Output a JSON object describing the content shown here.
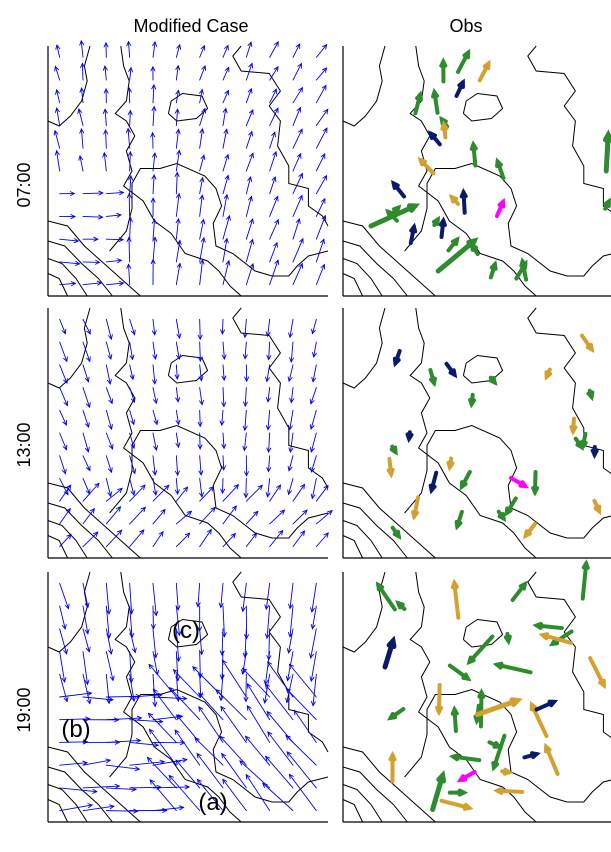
{
  "columns": [
    "Modified Case",
    "Obs"
  ],
  "rows": [
    "07:00",
    "13:00",
    "19:00"
  ],
  "annotations": [
    "(a)",
    "(b)",
    "(c)"
  ],
  "colors": {
    "model_arrow": "#0000ee",
    "contour": "#000000",
    "obs_green": "#2e8b2e",
    "obs_orange": "#d4a030",
    "obs_navy": "#0a1a6b",
    "obs_magenta": "#ff00ff",
    "obs_blue": "#0000ee"
  }
}
